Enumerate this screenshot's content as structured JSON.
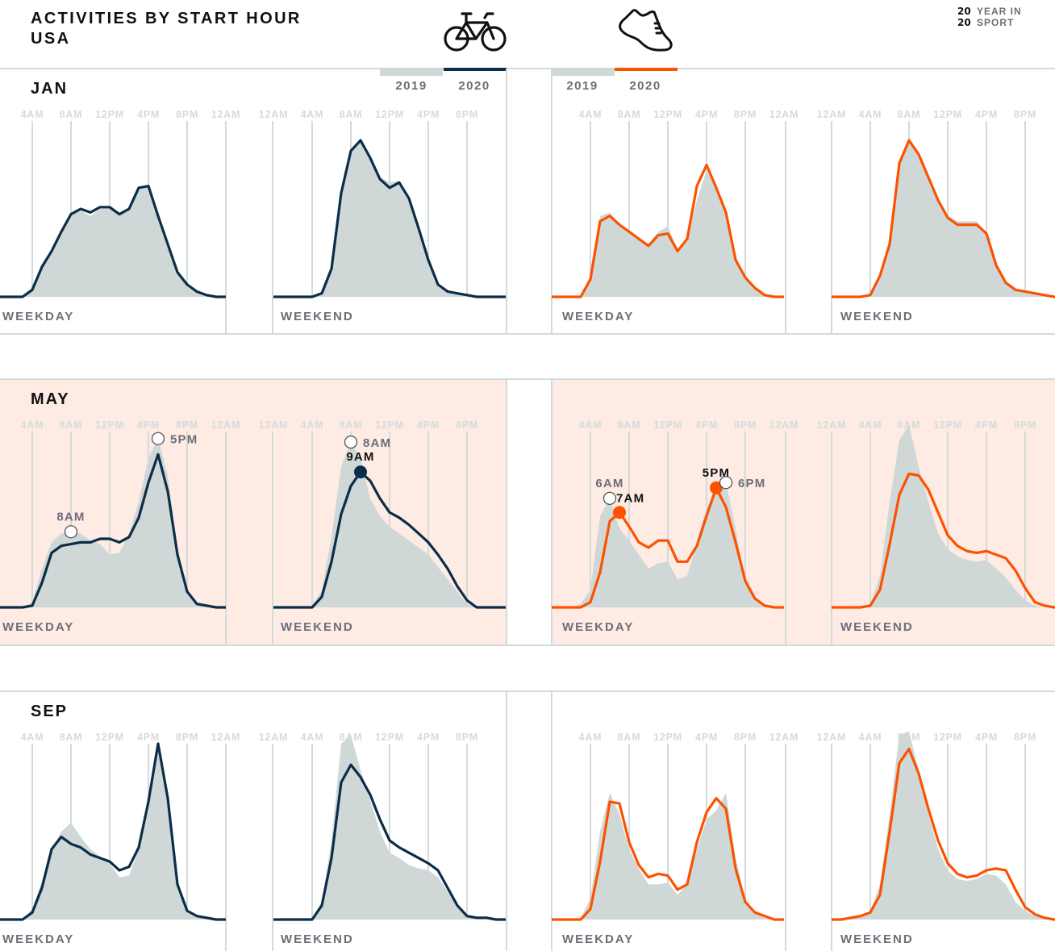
{
  "header": {
    "title_line1": "ACTIVITIES BY START HOUR",
    "title_line2": "USA",
    "brand": {
      "line1_num": "20",
      "line1_text": "YEAR IN",
      "line2_num": "20",
      "line2_text": "SPORT"
    },
    "sports": [
      {
        "icon": "bicycle-icon",
        "legend": [
          "2019",
          "2020"
        ]
      },
      {
        "icon": "running-shoe-icon",
        "legend": [
          "2019",
          "2020"
        ]
      }
    ]
  },
  "colors": {
    "ride_2020": "#0c2d48",
    "run_2020": "#fc5200",
    "area_2019": "#cfd8d7",
    "highlight_row": "#fdebe4",
    "grid": "#d3dbda"
  },
  "chart_data": {
    "type": "area",
    "xlabel": "",
    "ylabel": "",
    "x_unit": "start hour",
    "weekday_ticks": [
      "4AM",
      "8AM",
      "12PM",
      "4PM",
      "8PM",
      "12AM"
    ],
    "weekday_tick_hours": [
      4,
      8,
      12,
      16,
      20,
      24
    ],
    "weekend_ticks": [
      "12AM",
      "4AM",
      "8AM",
      "12PM",
      "4PM",
      "8PM"
    ],
    "weekend_tick_hours": [
      0,
      4,
      8,
      12,
      16,
      20
    ],
    "grid": true,
    "series_style": {
      "2019": "grey filled area",
      "2020": "colored line"
    },
    "months": [
      {
        "label": "JAN",
        "highlight": false,
        "panels": [
          {
            "sport": "ride",
            "day": "WEEKDAY",
            "series": [
              {
                "name": "2019",
                "values": [
                  0,
                  0,
                  0,
                  1,
                  5,
                  19,
                  27,
                  37,
                  46,
                  49,
                  46,
                  50,
                  51,
                  47,
                  50,
                  61,
                  63,
                  46,
                  30,
                  14,
                  7,
                  3,
                  1,
                  0
                ]
              },
              {
                "name": "2020",
                "values": [
                  0,
                  0,
                  0,
                  0,
                  4,
                  17,
                  26,
                  37,
                  47,
                  50,
                  48,
                  51,
                  51,
                  47,
                  50,
                  62,
                  63,
                  46,
                  30,
                  14,
                  7,
                  3,
                  1,
                  0
                ]
              }
            ],
            "markers": []
          },
          {
            "sport": "ride",
            "day": "WEEKEND",
            "series": [
              {
                "name": "2019",
                "values": [
                  0,
                  0,
                  0,
                  0,
                  0,
                  3,
                  17,
                  60,
                  83,
                  88,
                  78,
                  68,
                  65,
                  66,
                  56,
                  39,
                  21,
                  7,
                  3,
                  2,
                  1,
                  0,
                  0,
                  0
                ]
              },
              {
                "name": "2020",
                "values": [
                  0,
                  0,
                  0,
                  0,
                  0,
                  2,
                  16,
                  59,
                  83,
                  89,
                  79,
                  67,
                  62,
                  65,
                  56,
                  39,
                  21,
                  7,
                  3,
                  2,
                  1,
                  0,
                  0,
                  0
                ]
              }
            ],
            "markers": []
          },
          {
            "sport": "run",
            "day": "WEEKDAY",
            "series": [
              {
                "name": "2019",
                "values": [
                  0,
                  0,
                  0,
                  0,
                  12,
                  46,
                  48,
                  41,
                  37,
                  33,
                  30,
                  37,
                  40,
                  27,
                  33,
                  55,
                  72,
                  62,
                  48,
                  22,
                  11,
                  5,
                  1,
                  0
                ]
              },
              {
                "name": "2020",
                "values": [
                  0,
                  0,
                  0,
                  0,
                  10,
                  43,
                  46,
                  41,
                  37,
                  33,
                  29,
                  35,
                  36,
                  26,
                  33,
                  63,
                  75,
                  62,
                  48,
                  21,
                  11,
                  5,
                  1,
                  0
                ]
              }
            ],
            "markers": []
          },
          {
            "sport": "run",
            "day": "WEEKEND",
            "series": [
              {
                "name": "2019",
                "values": [
                  0,
                  0,
                  0,
                  0,
                  2,
                  13,
                  32,
                  77,
                  88,
                  80,
                  68,
                  56,
                  46,
                  43,
                  43,
                  43,
                  36,
                  18,
                  8,
                  4,
                  3,
                  2,
                  1,
                  0
                ]
              },
              {
                "name": "2020",
                "values": [
                  0,
                  0,
                  0,
                  0,
                  1,
                  12,
                  30,
                  76,
                  89,
                  81,
                  68,
                  55,
                  45,
                  41,
                  41,
                  41,
                  36,
                  18,
                  8,
                  4,
                  3,
                  2,
                  1,
                  0
                ]
              }
            ],
            "markers": []
          }
        ]
      },
      {
        "label": "MAY",
        "highlight": true,
        "panels": [
          {
            "sport": "ride",
            "day": "WEEKDAY",
            "series": [
              {
                "name": "2019",
                "values": [
                  0,
                  0,
                  0,
                  0,
                  3,
                  22,
                  37,
                  42,
                  43,
                  42,
                  38,
                  36,
                  30,
                  31,
                  42,
                  60,
                  85,
                  96,
                  75,
                  35,
                  8,
                  2,
                  1,
                  0
                ]
              },
              {
                "name": "2020",
                "values": [
                  0,
                  0,
                  0,
                  0,
                  1,
                  14,
                  31,
                  35,
                  36,
                  37,
                  37,
                  39,
                  39,
                  37,
                  40,
                  51,
                  71,
                  87,
                  66,
                  30,
                  9,
                  2,
                  1,
                  0
                ]
              }
            ],
            "markers": [
              {
                "series": "2019",
                "hour": 8,
                "label": "8AM",
                "placement": "above"
              },
              {
                "series": "2019",
                "hour": 17,
                "label": "5PM",
                "placement": "right"
              }
            ]
          },
          {
            "sport": "ride",
            "day": "WEEKEND",
            "series": [
              {
                "name": "2019",
                "values": [
                  0,
                  0,
                  0,
                  0,
                  1,
                  10,
                  40,
                  80,
                  94,
                  84,
                  62,
                  52,
                  46,
                  42,
                  38,
                  34,
                  30,
                  23,
                  16,
                  9,
                  2,
                  0,
                  0,
                  0
                ]
              },
              {
                "name": "2020",
                "values": [
                  0,
                  0,
                  0,
                  0,
                  0,
                  6,
                  26,
                  53,
                  69,
                  77,
                  72,
                  62,
                  54,
                  51,
                  47,
                  42,
                  37,
                  30,
                  22,
                  12,
                  4,
                  0,
                  0,
                  0
                ]
              }
            ],
            "markers": [
              {
                "series": "2019",
                "hour": 8,
                "label": "8AM",
                "placement": "right"
              },
              {
                "series": "2020",
                "hour": 9,
                "label": "9AM",
                "placement": "above"
              }
            ]
          },
          {
            "sport": "run",
            "day": "WEEKDAY",
            "series": [
              {
                "name": "2019",
                "values": [
                  0,
                  0,
                  0,
                  2,
                  10,
                  52,
                  62,
                  45,
                  38,
                  30,
                  22,
                  25,
                  26,
                  16,
                  18,
                  37,
                  57,
                  66,
                  71,
                  45,
                  14,
                  4,
                  1,
                  0
                ]
              },
              {
                "name": "2020",
                "values": [
                  0,
                  0,
                  0,
                  0,
                  3,
                  20,
                  49,
                  54,
                  46,
                  37,
                  34,
                  38,
                  38,
                  26,
                  26,
                  35,
                  52,
                  68,
                  57,
                  37,
                  15,
                  5,
                  1,
                  0
                ]
              }
            ],
            "markers": [
              {
                "series": "2019",
                "hour": 6,
                "label": "6AM",
                "placement": "above"
              },
              {
                "series": "2020",
                "hour": 7,
                "label": "7AM",
                "placement": "above-right"
              },
              {
                "series": "2020",
                "hour": 17,
                "label": "5PM",
                "placement": "above"
              },
              {
                "series": "2019",
                "hour": 18,
                "label": "6PM",
                "placement": "right"
              }
            ]
          },
          {
            "sport": "run",
            "day": "WEEKEND",
            "series": [
              {
                "name": "2019",
                "values": [
                  0,
                  0,
                  0,
                  0,
                  2,
                  18,
                  60,
                  95,
                  104,
                  80,
                  60,
                  42,
                  33,
                  29,
                  27,
                  26,
                  27,
                  22,
                  17,
                  10,
                  4,
                  1,
                  0,
                  0
                ]
              },
              {
                "name": "2020",
                "values": [
                  0,
                  0,
                  0,
                  0,
                  1,
                  10,
                  36,
                  64,
                  76,
                  75,
                  67,
                  54,
                  41,
                  35,
                  32,
                  31,
                  32,
                  30,
                  28,
                  21,
                  11,
                  3,
                  1,
                  0
                ]
              }
            ],
            "markers": []
          }
        ]
      },
      {
        "label": "SEP",
        "highlight": false,
        "panels": [
          {
            "sport": "ride",
            "day": "WEEKDAY",
            "series": [
              {
                "name": "2019",
                "values": [
                  0,
                  0,
                  0,
                  0,
                  6,
                  22,
                  40,
                  50,
                  55,
                  47,
                  40,
                  36,
                  32,
                  24,
                  25,
                  40,
                  67,
                  98,
                  70,
                  22,
                  5,
                  2,
                  1,
                  0
                ]
              },
              {
                "name": "2020",
                "values": [
                  0,
                  0,
                  0,
                  0,
                  4,
                  18,
                  40,
                  47,
                  43,
                  41,
                  37,
                  35,
                  33,
                  28,
                  30,
                  41,
                  67,
                  100,
                  69,
                  20,
                  5,
                  2,
                  1,
                  0
                ]
              }
            ],
            "markers": []
          },
          {
            "sport": "ride",
            "day": "WEEKEND",
            "series": [
              {
                "name": "2019",
                "values": [
                  0,
                  0,
                  0,
                  0,
                  1,
                  10,
                  45,
                  100,
                  105,
                  85,
                  68,
                  50,
                  38,
                  35,
                  31,
                  29,
                  28,
                  24,
                  16,
                  7,
                  2,
                  1,
                  0,
                  0
                ]
              },
              {
                "name": "2020",
                "values": [
                  0,
                  0,
                  0,
                  0,
                  0,
                  8,
                  35,
                  78,
                  88,
                  81,
                  71,
                  57,
                  45,
                  41,
                  38,
                  35,
                  32,
                  28,
                  18,
                  8,
                  2,
                  1,
                  1,
                  0
                ]
              }
            ],
            "markers": []
          },
          {
            "sport": "run",
            "day": "WEEKDAY",
            "series": [
              {
                "name": "2019",
                "values": [
                  0,
                  0,
                  0,
                  1,
                  12,
                  50,
                  72,
                  60,
                  40,
                  29,
                  20,
                  20,
                  21,
                  14,
                  20,
                  40,
                  57,
                  62,
                  72,
                  35,
                  11,
                  4,
                  1,
                  0
                ]
              },
              {
                "name": "2020",
                "values": [
                  0,
                  0,
                  0,
                  0,
                  6,
                  33,
                  67,
                  66,
                  44,
                  31,
                  24,
                  26,
                  25,
                  17,
                  20,
                  44,
                  61,
                  69,
                  63,
                  29,
                  10,
                  4,
                  2,
                  0
                ]
              }
            ],
            "markers": []
          },
          {
            "sport": "run",
            "day": "WEEKEND",
            "series": [
              {
                "name": "2019",
                "values": [
                  0,
                  0,
                  1,
                  2,
                  5,
                  20,
                  60,
                  105,
                  107,
                  85,
                  60,
                  40,
                  28,
                  23,
                  22,
                  23,
                  26,
                  25,
                  20,
                  10,
                  5,
                  2,
                  1,
                  0
                ]
              },
              {
                "name": "2020",
                "values": [
                  0,
                  0,
                  1,
                  2,
                  4,
                  14,
                  50,
                  89,
                  97,
                  83,
                  63,
                  45,
                  32,
                  26,
                  24,
                  25,
                  28,
                  29,
                  28,
                  17,
                  7,
                  3,
                  1,
                  0
                ]
              }
            ],
            "markers": []
          }
        ]
      }
    ]
  }
}
